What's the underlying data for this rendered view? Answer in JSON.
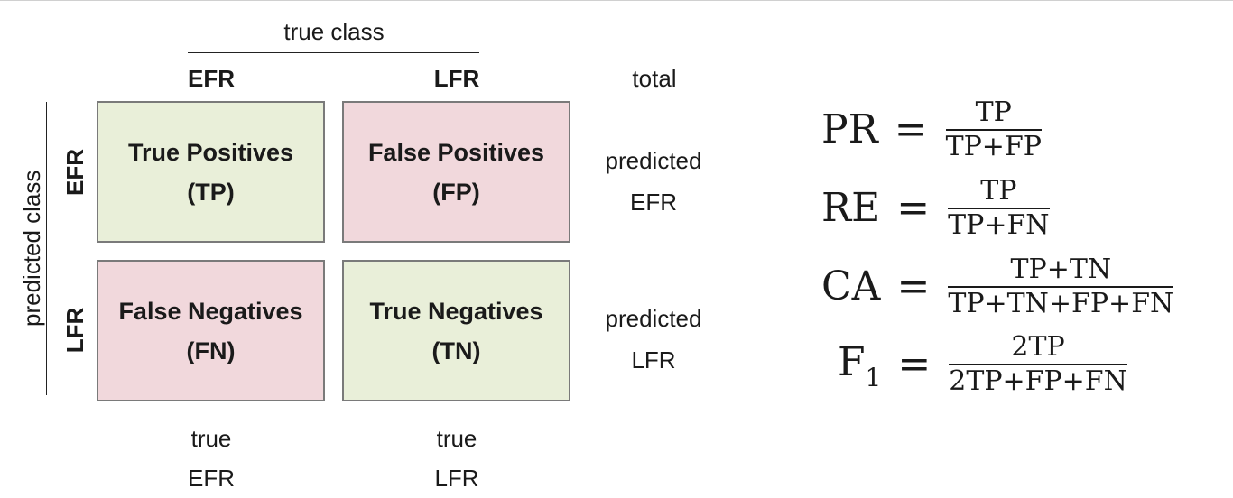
{
  "header": {
    "true_class": "true class",
    "col_efr": "EFR",
    "col_lfr": "LFR",
    "total": "total"
  },
  "side": {
    "predicted_class": "predicted class",
    "row_efr": "EFR",
    "row_lfr": "LFR"
  },
  "cells": {
    "tp_title": "True Positives",
    "tp_abbr": "(TP)",
    "fp_title": "False Positives",
    "fp_abbr": "(FP)",
    "fn_title": "False Negatives",
    "fn_abbr": "(FN)",
    "tn_title": "True Negatives",
    "tn_abbr": "(TN)"
  },
  "row_totals": {
    "efr_line1": "predicted",
    "efr_line2": "EFR",
    "lfr_line1": "predicted",
    "lfr_line2": "LFR"
  },
  "col_totals": {
    "efr_line1": "true",
    "efr_line2": "EFR",
    "lfr_line1": "true",
    "lfr_line2": "LFR"
  },
  "formulas": {
    "pr": {
      "lhs": "PR",
      "eq": "=",
      "num": "TP",
      "den": "TP+FP"
    },
    "re": {
      "lhs": "RE",
      "eq": "=",
      "num": "TP",
      "den": "TP+FN"
    },
    "ca": {
      "lhs": "CA",
      "eq": "=",
      "num": "TP+TN",
      "den": "TP+TN+FP+FN"
    },
    "f1": {
      "lhs": "F",
      "sub": "1",
      "eq": "=",
      "num": "2TP",
      "den": "2TP+FP+FN"
    }
  },
  "colors": {
    "positive_cell": "#e9efd9",
    "negative_cell": "#f1d8dc",
    "cell_border": "#7a7a7a"
  }
}
